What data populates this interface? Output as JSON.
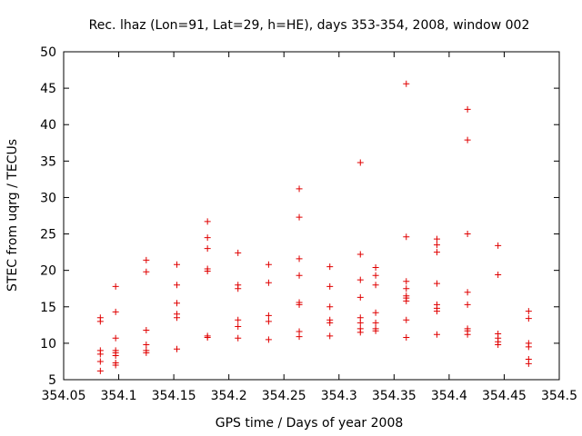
{
  "chart_data": {
    "type": "scatter",
    "title": "Rec. lhaz (Lon=91, Lat=29, h=HE), days 353-354, 2008, window 002",
    "xlabel": "GPS time / Days of year 2008",
    "ylabel": "STEC from uqrg / TECUs",
    "xlim": [
      354.05,
      354.5
    ],
    "ylim": [
      5,
      50
    ],
    "xticks": [
      "354.05",
      "354.1",
      "354.15",
      "354.2",
      "354.25",
      "354.3",
      "354.35",
      "354.4",
      "354.45",
      "354.5"
    ],
    "yticks": [
      "5",
      "10",
      "15",
      "20",
      "25",
      "30",
      "35",
      "40",
      "45",
      "50"
    ],
    "grid": false,
    "marker": "plus",
    "color": "#e00000",
    "points": [
      [
        354.0833,
        13.5
      ],
      [
        354.0833,
        13.0
      ],
      [
        354.0833,
        9.0
      ],
      [
        354.0833,
        8.5
      ],
      [
        354.0833,
        7.5
      ],
      [
        354.0833,
        6.2
      ],
      [
        354.0972,
        17.8
      ],
      [
        354.0972,
        14.3
      ],
      [
        354.0972,
        10.7
      ],
      [
        354.0972,
        9.0
      ],
      [
        354.0972,
        8.7
      ],
      [
        354.0972,
        8.3
      ],
      [
        354.0972,
        7.3
      ],
      [
        354.0972,
        7.0
      ],
      [
        354.125,
        21.4
      ],
      [
        354.125,
        19.8
      ],
      [
        354.125,
        11.8
      ],
      [
        354.125,
        9.8
      ],
      [
        354.125,
        9.0
      ],
      [
        354.125,
        8.7
      ],
      [
        354.1528,
        20.8
      ],
      [
        354.1528,
        18.0
      ],
      [
        354.1528,
        15.5
      ],
      [
        354.1528,
        14.0
      ],
      [
        354.1528,
        13.5
      ],
      [
        354.1528,
        9.2
      ],
      [
        354.1806,
        26.7
      ],
      [
        354.1806,
        24.5
      ],
      [
        354.1806,
        23.0
      ],
      [
        354.1806,
        20.2
      ],
      [
        354.1806,
        19.9
      ],
      [
        354.1806,
        11.0
      ],
      [
        354.1806,
        10.8
      ],
      [
        354.2083,
        22.4
      ],
      [
        354.2083,
        18.0
      ],
      [
        354.2083,
        17.5
      ],
      [
        354.2083,
        13.2
      ],
      [
        354.2083,
        12.3
      ],
      [
        354.2083,
        10.7
      ],
      [
        354.2361,
        20.8
      ],
      [
        354.2361,
        18.3
      ],
      [
        354.2361,
        13.8
      ],
      [
        354.2361,
        13.0
      ],
      [
        354.2361,
        10.5
      ],
      [
        354.2639,
        31.2
      ],
      [
        354.2639,
        27.3
      ],
      [
        354.2639,
        21.6
      ],
      [
        354.2639,
        19.3
      ],
      [
        354.2639,
        15.6
      ],
      [
        354.2639,
        15.3
      ],
      [
        354.2639,
        11.6
      ],
      [
        354.2639,
        10.9
      ],
      [
        354.2917,
        20.5
      ],
      [
        354.2917,
        17.8
      ],
      [
        354.2917,
        15.0
      ],
      [
        354.2917,
        13.2
      ],
      [
        354.2917,
        12.8
      ],
      [
        354.2917,
        11.0
      ],
      [
        354.3194,
        34.8
      ],
      [
        354.3194,
        22.2
      ],
      [
        354.3194,
        18.7
      ],
      [
        354.3194,
        16.3
      ],
      [
        354.3194,
        13.5
      ],
      [
        354.3194,
        12.8
      ],
      [
        354.3194,
        12.0
      ],
      [
        354.3194,
        11.5
      ],
      [
        354.3333,
        20.4
      ],
      [
        354.3333,
        19.3
      ],
      [
        354.3333,
        18.0
      ],
      [
        354.3333,
        14.2
      ],
      [
        354.3333,
        12.8
      ],
      [
        354.3333,
        12.0
      ],
      [
        354.3333,
        11.7
      ],
      [
        354.3611,
        45.6
      ],
      [
        354.3611,
        24.6
      ],
      [
        354.3611,
        18.5
      ],
      [
        354.3611,
        17.5
      ],
      [
        354.3611,
        16.5
      ],
      [
        354.3611,
        16.2
      ],
      [
        354.3611,
        15.8
      ],
      [
        354.3611,
        13.2
      ],
      [
        354.3611,
        10.8
      ],
      [
        354.3889,
        24.3
      ],
      [
        354.3889,
        23.5
      ],
      [
        354.3889,
        22.5
      ],
      [
        354.3889,
        18.2
      ],
      [
        354.3889,
        15.3
      ],
      [
        354.3889,
        14.8
      ],
      [
        354.3889,
        14.4
      ],
      [
        354.3889,
        11.2
      ],
      [
        354.4167,
        42.1
      ],
      [
        354.4167,
        37.9
      ],
      [
        354.4167,
        25.0
      ],
      [
        354.4167,
        17.0
      ],
      [
        354.4167,
        15.3
      ],
      [
        354.4167,
        12.0
      ],
      [
        354.4167,
        11.7
      ],
      [
        354.4167,
        11.2
      ],
      [
        354.4444,
        23.4
      ],
      [
        354.4444,
        19.4
      ],
      [
        354.4444,
        11.3
      ],
      [
        354.4444,
        10.7
      ],
      [
        354.4444,
        10.2
      ],
      [
        354.4444,
        9.8
      ],
      [
        354.4722,
        14.4
      ],
      [
        354.4722,
        13.4
      ],
      [
        354.4722,
        10.0
      ],
      [
        354.4722,
        9.5
      ],
      [
        354.4722,
        7.8
      ],
      [
        354.4722,
        7.2
      ]
    ]
  }
}
